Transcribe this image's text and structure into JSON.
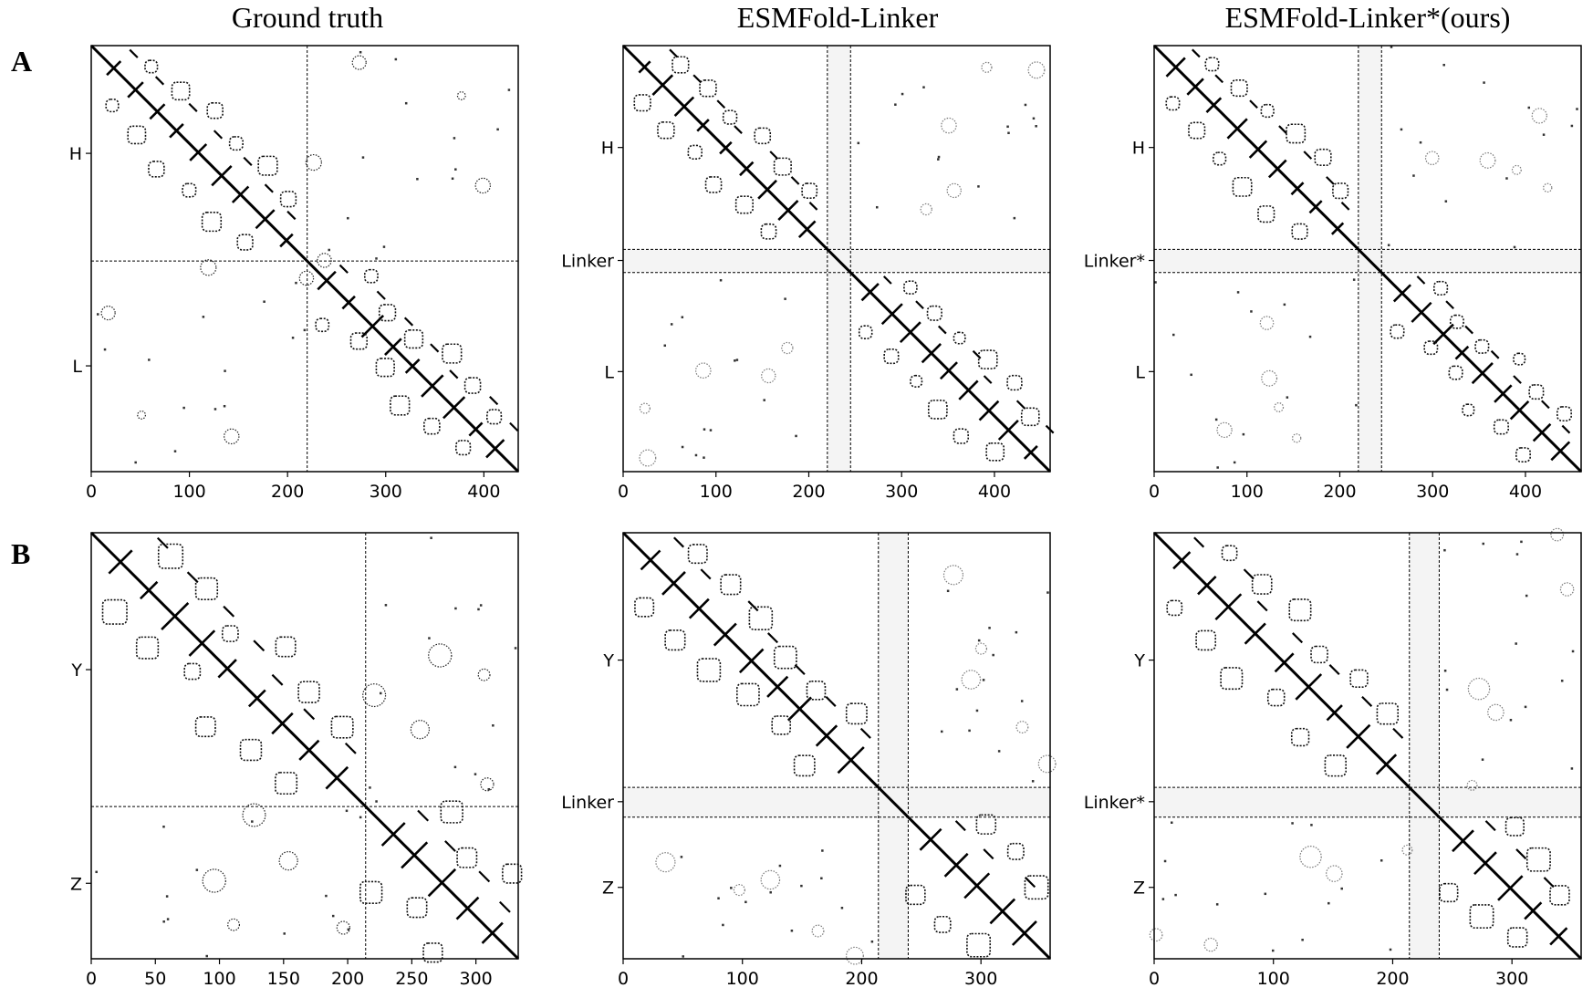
{
  "column_titles": [
    "Ground truth",
    "ESMFold-Linker",
    "ESMFold-Linker*(ours)"
  ],
  "row_labels": [
    "A",
    "B"
  ],
  "chart_data": [
    {
      "type": "heatmap",
      "row": "A",
      "title": "Ground truth",
      "total_length": 435,
      "segments": [
        {
          "label": "H",
          "start": 0,
          "end": 220
        },
        {
          "label": "L",
          "start": 220,
          "end": 435
        }
      ],
      "boundaries": [
        220
      ],
      "xticks": [
        0,
        100,
        200,
        300,
        400
      ],
      "yticks": [
        {
          "value": 110,
          "label": "H"
        },
        {
          "value": 327,
          "label": "L"
        }
      ],
      "predicted": false
    },
    {
      "type": "heatmap",
      "row": "A",
      "title": "ESMFold-Linker",
      "total_length": 460,
      "segments": [
        {
          "label": "H",
          "start": 0,
          "end": 220
        },
        {
          "label": "Linker",
          "start": 220,
          "end": 245
        },
        {
          "label": "L",
          "start": 245,
          "end": 460
        }
      ],
      "boundaries": [
        220,
        245
      ],
      "xticks": [
        0,
        100,
        200,
        300,
        400
      ],
      "yticks": [
        {
          "value": 110,
          "label": "H"
        },
        {
          "value": 232,
          "label": "Linker"
        },
        {
          "value": 352,
          "label": "L"
        }
      ],
      "predicted": true
    },
    {
      "type": "heatmap",
      "row": "A",
      "title": "ESMFold-Linker*(ours)",
      "total_length": 460,
      "segments": [
        {
          "label": "H",
          "start": 0,
          "end": 220
        },
        {
          "label": "Linker*",
          "start": 220,
          "end": 245
        },
        {
          "label": "L",
          "start": 245,
          "end": 460
        }
      ],
      "boundaries": [
        220,
        245
      ],
      "xticks": [
        0,
        100,
        200,
        300,
        400
      ],
      "yticks": [
        {
          "value": 110,
          "label": "H"
        },
        {
          "value": 232,
          "label": "Linker*"
        },
        {
          "value": 352,
          "label": "L"
        }
      ],
      "predicted": true
    },
    {
      "type": "heatmap",
      "row": "B",
      "title": "Ground truth",
      "total_length": 333,
      "segments": [
        {
          "label": "Y",
          "start": 0,
          "end": 214
        },
        {
          "label": "Z",
          "start": 214,
          "end": 333
        }
      ],
      "boundaries": [
        214
      ],
      "xticks": [
        0,
        50,
        100,
        150,
        200,
        250,
        300
      ],
      "yticks": [
        {
          "value": 107,
          "label": "Y"
        },
        {
          "value": 274,
          "label": "Z"
        }
      ],
      "predicted": false
    },
    {
      "type": "heatmap",
      "row": "B",
      "title": "ESMFold-Linker",
      "total_length": 358,
      "segments": [
        {
          "label": "Y",
          "start": 0,
          "end": 214
        },
        {
          "label": "Linker",
          "start": 214,
          "end": 239
        },
        {
          "label": "Z",
          "start": 239,
          "end": 358
        }
      ],
      "boundaries": [
        214,
        239
      ],
      "xticks": [
        0,
        100,
        200,
        300
      ],
      "yticks": [
        {
          "value": 107,
          "label": "Y"
        },
        {
          "value": 226,
          "label": "Linker"
        },
        {
          "value": 298,
          "label": "Z"
        }
      ],
      "predicted": true
    },
    {
      "type": "heatmap",
      "row": "B",
      "title": "ESMFold-Linker*(ours)",
      "total_length": 358,
      "segments": [
        {
          "label": "Y",
          "start": 0,
          "end": 214
        },
        {
          "label": "Linker*",
          "start": 214,
          "end": 239
        },
        {
          "label": "Z",
          "start": 239,
          "end": 358
        }
      ],
      "boundaries": [
        214,
        239
      ],
      "xticks": [
        0,
        100,
        200,
        300
      ],
      "yticks": [
        {
          "value": 107,
          "label": "Y"
        },
        {
          "value": 226,
          "label": "Linker*"
        },
        {
          "value": 298,
          "label": "Z"
        }
      ],
      "predicted": true
    }
  ]
}
